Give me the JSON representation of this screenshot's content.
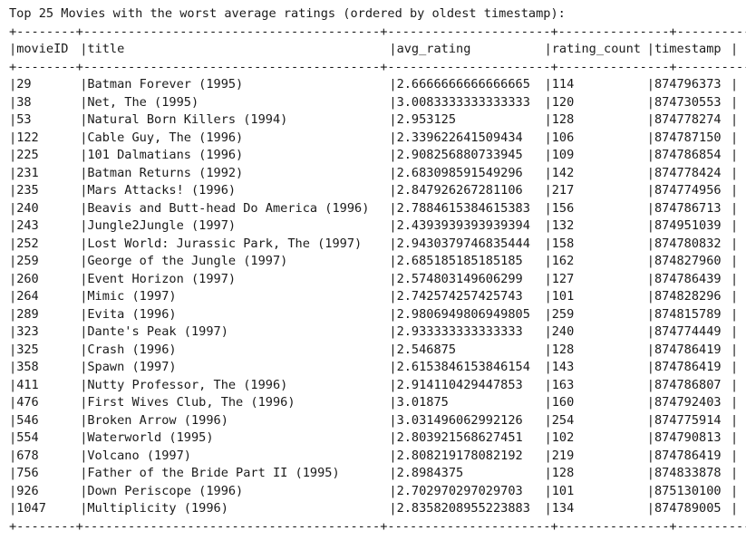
{
  "heading": "Top 25 Movies with the worst average ratings (ordered by oldest timestamp):",
  "border": "+--------+----------------------------------------+----------------------+---------------+-----------+",
  "columns": {
    "movieID": "movieID",
    "title": "title",
    "avg_rating": "avg_rating",
    "rating_count": "rating_count",
    "timestamp": "timestamp"
  },
  "rows": [
    {
      "movieID": "29",
      "title": "Batman Forever (1995)",
      "avg_rating": "2.6666666666666665",
      "rating_count": "114",
      "timestamp": "874796373"
    },
    {
      "movieID": "38",
      "title": "Net, The (1995)",
      "avg_rating": "3.0083333333333333",
      "rating_count": "120",
      "timestamp": "874730553"
    },
    {
      "movieID": "53",
      "title": "Natural Born Killers (1994)",
      "avg_rating": "2.953125",
      "rating_count": "128",
      "timestamp": "874778274"
    },
    {
      "movieID": "122",
      "title": "Cable Guy, The (1996)",
      "avg_rating": "2.339622641509434",
      "rating_count": "106",
      "timestamp": "874787150"
    },
    {
      "movieID": "225",
      "title": "101 Dalmatians (1996)",
      "avg_rating": "2.908256880733945",
      "rating_count": "109",
      "timestamp": "874786854"
    },
    {
      "movieID": "231",
      "title": "Batman Returns (1992)",
      "avg_rating": "2.683098591549296",
      "rating_count": "142",
      "timestamp": "874778424"
    },
    {
      "movieID": "235",
      "title": "Mars Attacks! (1996)",
      "avg_rating": "2.847926267281106",
      "rating_count": "217",
      "timestamp": "874774956"
    },
    {
      "movieID": "240",
      "title": "Beavis and Butt-head Do America (1996)",
      "avg_rating": "2.7884615384615383",
      "rating_count": "156",
      "timestamp": "874786713"
    },
    {
      "movieID": "243",
      "title": "Jungle2Jungle (1997)",
      "avg_rating": "2.4393939393939394",
      "rating_count": "132",
      "timestamp": "874951039"
    },
    {
      "movieID": "252",
      "title": "Lost World: Jurassic Park, The (1997)",
      "avg_rating": "2.9430379746835444",
      "rating_count": "158",
      "timestamp": "874780832"
    },
    {
      "movieID": "259",
      "title": "George of the Jungle (1997)",
      "avg_rating": "2.685185185185185",
      "rating_count": "162",
      "timestamp": "874827960"
    },
    {
      "movieID": "260",
      "title": "Event Horizon (1997)",
      "avg_rating": "2.574803149606299",
      "rating_count": "127",
      "timestamp": "874786439"
    },
    {
      "movieID": "264",
      "title": "Mimic (1997)",
      "avg_rating": "2.742574257425743",
      "rating_count": "101",
      "timestamp": "874828296"
    },
    {
      "movieID": "289",
      "title": "Evita (1996)",
      "avg_rating": "2.9806949806949805",
      "rating_count": "259",
      "timestamp": "874815789"
    },
    {
      "movieID": "323",
      "title": "Dante's Peak (1997)",
      "avg_rating": "2.933333333333333",
      "rating_count": "240",
      "timestamp": "874774449"
    },
    {
      "movieID": "325",
      "title": "Crash (1996)",
      "avg_rating": "2.546875",
      "rating_count": "128",
      "timestamp": "874786419"
    },
    {
      "movieID": "358",
      "title": "Spawn (1997)",
      "avg_rating": "2.6153846153846154",
      "rating_count": "143",
      "timestamp": "874786419"
    },
    {
      "movieID": "411",
      "title": "Nutty Professor, The (1996)",
      "avg_rating": "2.914110429447853",
      "rating_count": "163",
      "timestamp": "874786807"
    },
    {
      "movieID": "476",
      "title": "First Wives Club, The (1996)",
      "avg_rating": "3.01875",
      "rating_count": "160",
      "timestamp": "874792403"
    },
    {
      "movieID": "546",
      "title": "Broken Arrow (1996)",
      "avg_rating": "3.031496062992126",
      "rating_count": "254",
      "timestamp": "874775914"
    },
    {
      "movieID": "554",
      "title": "Waterworld (1995)",
      "avg_rating": "2.803921568627451",
      "rating_count": "102",
      "timestamp": "874790813"
    },
    {
      "movieID": "678",
      "title": "Volcano (1997)",
      "avg_rating": "2.808219178082192",
      "rating_count": "219",
      "timestamp": "874786419"
    },
    {
      "movieID": "756",
      "title": "Father of the Bride Part II (1995)",
      "avg_rating": "2.8984375",
      "rating_count": "128",
      "timestamp": "874833878"
    },
    {
      "movieID": "926",
      "title": "Down Periscope (1996)",
      "avg_rating": "2.702970297029703",
      "rating_count": "101",
      "timestamp": "875130100"
    },
    {
      "movieID": "1047",
      "title": "Multiplicity (1996)",
      "avg_rating": "2.8358208955223883",
      "rating_count": "134",
      "timestamp": "874789005"
    }
  ]
}
